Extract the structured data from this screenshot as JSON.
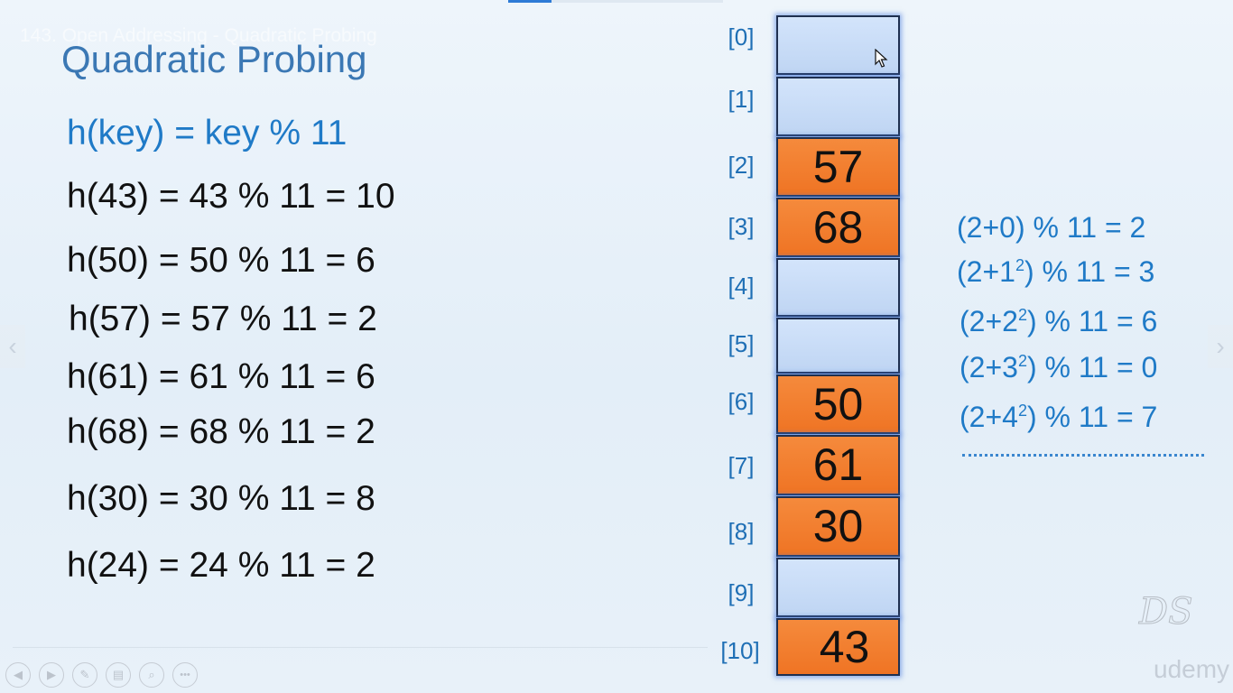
{
  "lecture_title": "143. Open Addressing - Quadratic Probing",
  "slide": {
    "title": "Quadratic Probing",
    "formula": "h(key) = key % 11",
    "calculations": [
      "h(43) = 43 % 11 = 10",
      "h(50) = 50 % 11 = 6",
      "h(57) = 57 % 11 = 2",
      "h(61) = 61 % 11 = 6",
      "h(68) = 68 % 11 = 2",
      "h(30) = 30 % 11 = 8",
      "h(24) = 24 % 11 = 2"
    ]
  },
  "hash_table": {
    "indices": [
      "[0]",
      "[1]",
      "[2]",
      "[3]",
      "[4]",
      "[5]",
      "[6]",
      "[7]",
      "[8]",
      "[9]",
      "[10]"
    ],
    "values": [
      "",
      "",
      "57",
      "68",
      "",
      "",
      "50",
      "61",
      "30",
      "",
      "43"
    ]
  },
  "probes": [
    {
      "prefix": "(2+0) % 11 = 2",
      "sup": "",
      "suffix": ""
    },
    {
      "prefix": "(2+1",
      "sup": "2",
      "suffix": ") % 11 = 3"
    },
    {
      "prefix": "(2+2",
      "sup": "2",
      "suffix": ") % 11 = 6"
    },
    {
      "prefix": "(2+3",
      "sup": "2",
      "suffix": ") % 11 = 0"
    },
    {
      "prefix": "(2+4",
      "sup": "2",
      "suffix": ") % 11 = 7"
    }
  ],
  "watermarks": {
    "ds": "DS",
    "udemy": "udemy"
  },
  "player_controls": [
    {
      "name": "prev-slide-button",
      "glyph": "◀"
    },
    {
      "name": "next-slide-button",
      "glyph": "▶"
    },
    {
      "name": "pen-tool-button",
      "glyph": "✎"
    },
    {
      "name": "slide-sorter-button",
      "glyph": "▤"
    },
    {
      "name": "zoom-button",
      "glyph": "⌕"
    },
    {
      "name": "more-options-button",
      "glyph": "•••"
    }
  ],
  "icons": {
    "nav_left": "‹",
    "nav_right": "›",
    "cursor": "mouse-pointer-icon"
  },
  "colors": {
    "title_blue": "#3b78b4",
    "formula_blue": "#1f7ac7",
    "filled_cell": "#f07c2c",
    "empty_cell": "#c8dcf6"
  }
}
